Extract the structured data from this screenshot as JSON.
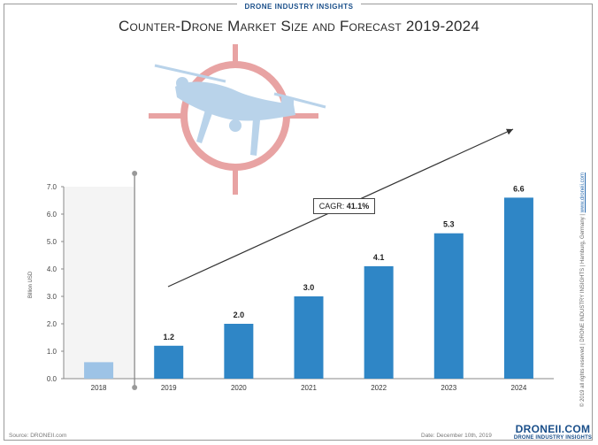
{
  "brand_top": "DRONE INDUSTRY INSIGHTS",
  "title": "Counter-Drone Market Size and Forecast 2019-2024",
  "cagr": {
    "label": "CAGR:",
    "value": "41.1%"
  },
  "source": "Source: DRONEII.com",
  "date": "Date: December 10th, 2019",
  "side_note": "© 2019 all rights reserved | DRONE INDUSTRY INSIGHTS | Hamburg, Germany |",
  "side_link": "www.droneii.com",
  "logo": {
    "main": "DRONEII.COM",
    "sub": "DRONE INDUSTRY INSIGHTS"
  },
  "colors": {
    "bar": "#2f86c6",
    "bar_past": "#9dc3e6",
    "target": "#e8a3a3",
    "drone": "#b9d3ea"
  },
  "icons": [
    "crosshair-icon",
    "drone-icon"
  ],
  "chart_data": {
    "type": "bar",
    "categories": [
      "2018",
      "2019",
      "2020",
      "2021",
      "2022",
      "2023",
      "2024"
    ],
    "values": [
      0.6,
      1.2,
      2.0,
      3.0,
      4.1,
      5.3,
      6.6
    ],
    "data_labels": [
      "",
      "1.2",
      "2.0",
      "3.0",
      "4.1",
      "5.3",
      "6.6"
    ],
    "y_ticks": [
      "0.0",
      "1.0",
      "2.0",
      "3.0",
      "4.0",
      "5.0",
      "6.0",
      "7.0"
    ],
    "ylabel": "Billion USD",
    "ylim": [
      0,
      7
    ],
    "grid": false,
    "legend": "none"
  }
}
